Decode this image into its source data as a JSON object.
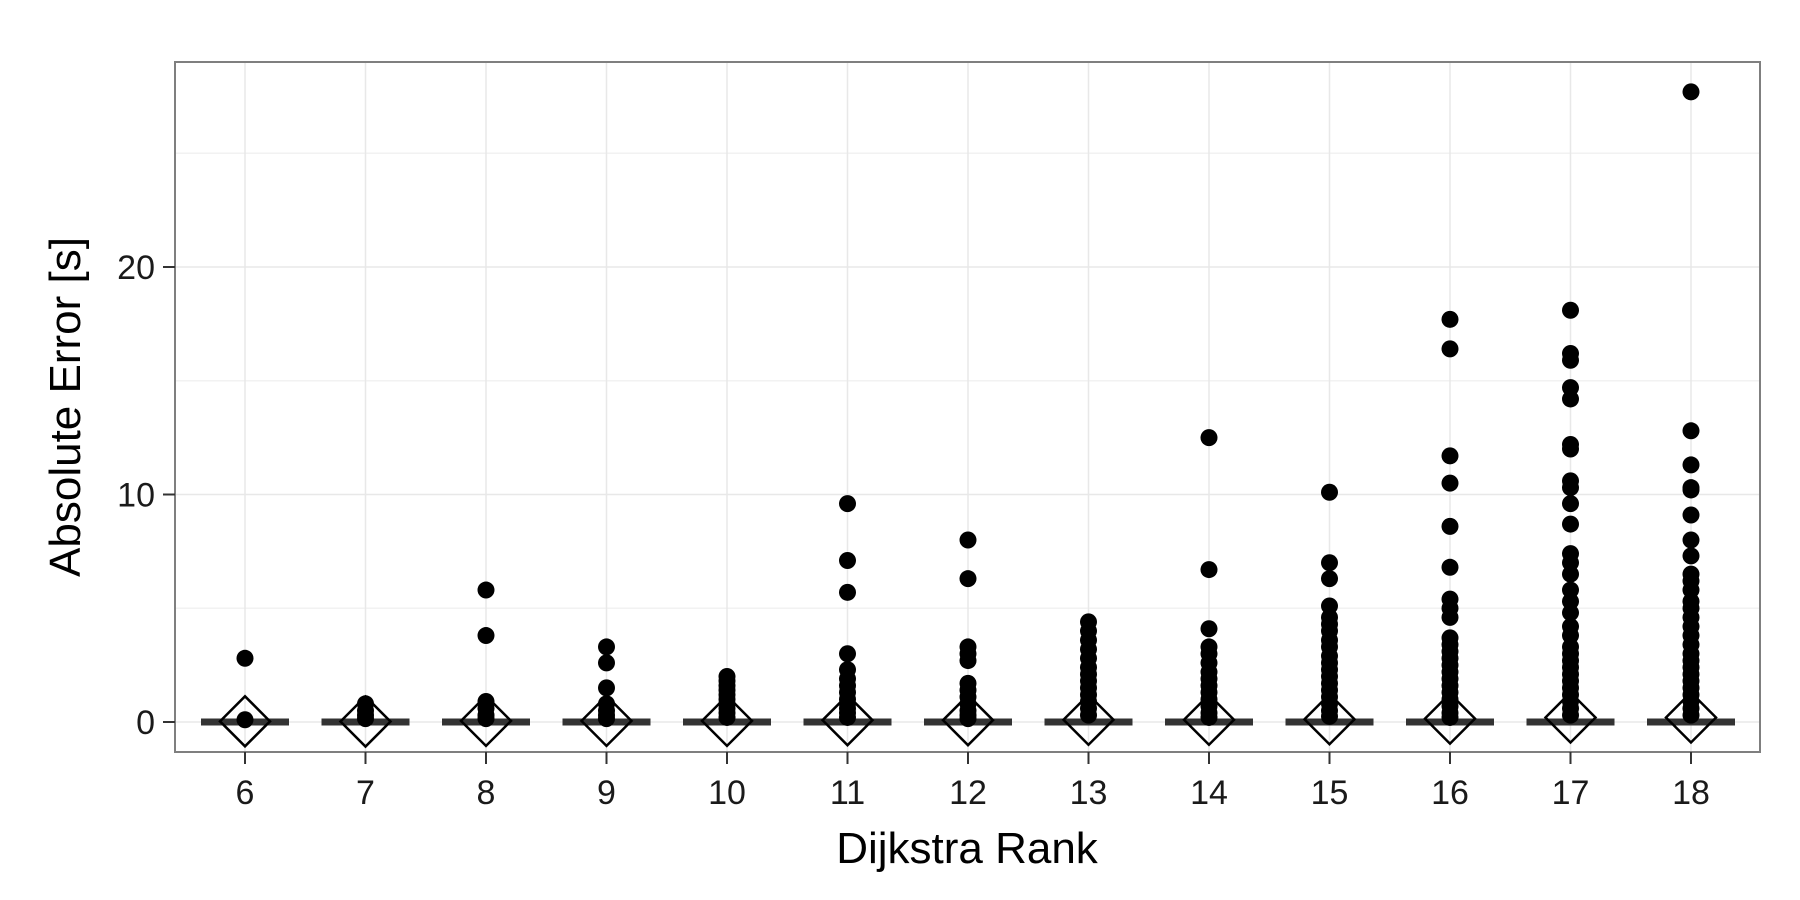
{
  "chart_data": {
    "type": "box",
    "title": "",
    "xlabel": "Dijkstra Rank",
    "ylabel": "Absolute Error [s]",
    "ylim": [
      -1.3,
      27.8
    ],
    "x_ticks": [
      "6",
      "7",
      "8",
      "9",
      "10",
      "11",
      "12",
      "13",
      "14",
      "15",
      "16",
      "17",
      "18"
    ],
    "y_ticks": [
      0,
      10,
      20
    ],
    "grid": true,
    "background": "#ffffff",
    "grid_color": "#e8e8e8",
    "point_color": "#000000",
    "median_color": "#333333",
    "mean_marker": "hollow-diamond",
    "groups": [
      {
        "rank": "6",
        "median": 0,
        "mean": 0.03,
        "outliers": [
          2.8,
          0.1
        ]
      },
      {
        "rank": "7",
        "median": 0,
        "mean": 0.02,
        "outliers": [
          0.8,
          0.5,
          0.3,
          0.15
        ]
      },
      {
        "rank": "8",
        "median": 0,
        "mean": 0.05,
        "outliers": [
          5.8,
          3.8,
          0.9,
          0.6,
          0.3,
          0.15
        ]
      },
      {
        "rank": "9",
        "median": 0,
        "mean": 0.05,
        "outliers": [
          3.3,
          2.6,
          1.5,
          0.8,
          0.5,
          0.3,
          0.15
        ]
      },
      {
        "rank": "10",
        "median": 0,
        "mean": 0.05,
        "outliers": [
          2.0,
          1.8,
          1.6,
          1.4,
          1.2,
          1.0,
          0.8,
          0.6,
          0.4,
          0.2
        ]
      },
      {
        "rank": "11",
        "median": 0,
        "mean": 0.08,
        "outliers": [
          9.6,
          7.1,
          5.7,
          3.0,
          2.3,
          1.9,
          1.6,
          1.3,
          1.0,
          0.8,
          0.6,
          0.4,
          0.2
        ]
      },
      {
        "rank": "12",
        "median": 0,
        "mean": 0.08,
        "outliers": [
          8.0,
          6.3,
          3.3,
          3.0,
          2.7,
          1.7,
          1.4,
          1.1,
          0.8,
          0.5,
          0.3,
          0.15
        ]
      },
      {
        "rank": "13",
        "median": 0,
        "mean": 0.1,
        "outliers": [
          4.4,
          4.0,
          3.6,
          3.2,
          2.8,
          2.4,
          2.1,
          1.8,
          1.5,
          1.2,
          0.9,
          0.6,
          0.3
        ]
      },
      {
        "rank": "14",
        "median": 0,
        "mean": 0.1,
        "outliers": [
          12.5,
          6.7,
          4.1,
          3.3,
          3.0,
          2.6,
          2.2,
          1.9,
          1.6,
          1.3,
          1.0,
          0.7,
          0.4,
          0.2
        ]
      },
      {
        "rank": "15",
        "median": 0,
        "mean": 0.12,
        "outliers": [
          10.1,
          7.0,
          6.3,
          5.1,
          4.6,
          4.3,
          4.0,
          3.6,
          3.3,
          2.9,
          2.6,
          2.3,
          2.0,
          1.7,
          1.4,
          1.1,
          0.8,
          0.5,
          0.25
        ]
      },
      {
        "rank": "16",
        "median": 0,
        "mean": 0.15,
        "outliers": [
          17.7,
          16.4,
          11.7,
          10.5,
          8.6,
          6.8,
          5.4,
          5.0,
          4.6,
          3.7,
          3.4,
          3.1,
          2.8,
          2.5,
          2.2,
          1.9,
          1.6,
          1.3,
          1.0,
          0.7,
          0.4,
          0.2
        ]
      },
      {
        "rank": "17",
        "median": 0,
        "mean": 0.2,
        "outliers": [
          18.1,
          16.2,
          15.9,
          14.7,
          14.2,
          12.2,
          12.0,
          10.6,
          10.3,
          9.6,
          8.7,
          7.4,
          7.0,
          6.5,
          5.8,
          5.3,
          4.8,
          4.2,
          3.8,
          3.3,
          3.0,
          2.7,
          2.4,
          2.1,
          1.8,
          1.5,
          1.2,
          0.9,
          0.6,
          0.3
        ]
      },
      {
        "rank": "18",
        "median": 0,
        "mean": 0.2,
        "outliers": [
          27.7,
          12.8,
          11.3,
          10.3,
          10.2,
          9.1,
          8.0,
          7.3,
          6.5,
          6.2,
          5.8,
          5.3,
          5.0,
          4.6,
          4.2,
          3.8,
          3.4,
          3.0,
          2.7,
          2.4,
          2.1,
          1.8,
          1.5,
          1.2,
          0.9,
          0.6,
          0.3
        ]
      }
    ]
  }
}
